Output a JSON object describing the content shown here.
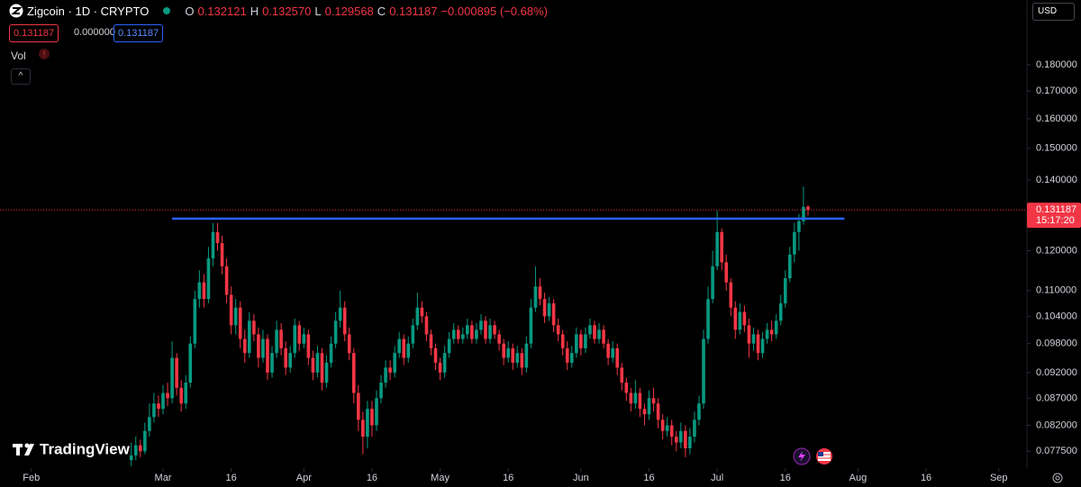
{
  "header": {
    "symbol": "Zigcoin · 1D · CRYPTO",
    "o_label": "O",
    "o_value": "0.132121",
    "h_label": "H",
    "h_value": "0.132570",
    "l_label": "L",
    "l_value": "0.129568",
    "c_label": "C",
    "c_value": "0.131187",
    "change": "−0.000895 (−0.68%)",
    "sell_box": "0.131187",
    "spread_box": "0.000000",
    "buy_box": "0.131187",
    "vol": "Vol",
    "currency": "USD",
    "brand": "TradingView"
  },
  "chart_data": {
    "type": "candlestick",
    "log_scale": true,
    "up_color": "#089981",
    "down_color": "#f23645",
    "xlim": [
      -6.9,
      219.2
    ],
    "xticks": [
      {
        "value": 0,
        "label": "Feb"
      },
      {
        "value": 29,
        "label": "Mar"
      },
      {
        "value": 44,
        "label": "16"
      },
      {
        "value": 60,
        "label": "Apr"
      },
      {
        "value": 75,
        "label": "16"
      },
      {
        "value": 90,
        "label": "May"
      },
      {
        "value": 105,
        "label": "16"
      },
      {
        "value": 121,
        "label": "Jun"
      },
      {
        "value": 136,
        "label": "16"
      },
      {
        "value": 151,
        "label": "Jul"
      },
      {
        "value": 166,
        "label": "16"
      },
      {
        "value": 182,
        "label": "Aug"
      },
      {
        "value": 197,
        "label": "16"
      },
      {
        "value": 213,
        "label": "Sep"
      }
    ],
    "ylim": [
      0.0747,
      0.2073
    ],
    "yticks": [
      {
        "value": 0.18,
        "label": "0.180000"
      },
      {
        "value": 0.17,
        "label": "0.170000"
      },
      {
        "value": 0.16,
        "label": "0.160000"
      },
      {
        "value": 0.15,
        "label": "0.150000"
      },
      {
        "value": 0.14,
        "label": "0.140000"
      },
      {
        "value": 0.12,
        "label": "0.120000"
      },
      {
        "value": 0.11,
        "label": "0.110000"
      },
      {
        "value": 0.104,
        "label": "0.104000"
      },
      {
        "value": 0.098,
        "label": "0.098000"
      },
      {
        "value": 0.092,
        "label": "0.092000"
      },
      {
        "value": 0.087,
        "label": "0.087000"
      },
      {
        "value": 0.082,
        "label": "0.082000"
      },
      {
        "value": 0.0775,
        "label": "0.077500"
      }
    ],
    "last_price": 0.131187,
    "countdown": "15:17:20",
    "level_line": {
      "value": 0.1287,
      "x": [
        31,
        179
      ],
      "color": "#2962ff"
    },
    "x": [
      22,
      23,
      24,
      25,
      26,
      27,
      28,
      29,
      30,
      31,
      32,
      33,
      34,
      35,
      36,
      37,
      38,
      39,
      40,
      41,
      42,
      43,
      44,
      45,
      46,
      47,
      48,
      49,
      50,
      51,
      52,
      53,
      54,
      55,
      56,
      57,
      58,
      59,
      60,
      61,
      62,
      63,
      64,
      65,
      66,
      67,
      68,
      69,
      70,
      71,
      72,
      73,
      74,
      75,
      76,
      77,
      78,
      79,
      80,
      81,
      82,
      83,
      84,
      85,
      86,
      87,
      88,
      89,
      90,
      91,
      92,
      93,
      94,
      95,
      96,
      97,
      98,
      99,
      100,
      101,
      102,
      103,
      104,
      105,
      106,
      107,
      108,
      109,
      110,
      111,
      112,
      113,
      114,
      115,
      116,
      117,
      118,
      119,
      120,
      121,
      122,
      123,
      124,
      125,
      126,
      127,
      128,
      129,
      130,
      131,
      132,
      133,
      134,
      135,
      136,
      137,
      138,
      139,
      140,
      141,
      142,
      143,
      144,
      145,
      146,
      147,
      148,
      149,
      150,
      151,
      152,
      153,
      154,
      155,
      156,
      157,
      158,
      159,
      160,
      161,
      162,
      163,
      164,
      165,
      166,
      167,
      168,
      169,
      170,
      171
    ],
    "open": [
      0.076,
      0.0768,
      0.0785,
      0.0775,
      0.081,
      0.0835,
      0.086,
      0.085,
      0.088,
      0.087,
      0.095,
      0.089,
      0.086,
      0.09,
      0.098,
      0.108,
      0.112,
      0.108,
      0.118,
      0.125,
      0.122,
      0.116,
      0.109,
      0.102,
      0.106,
      0.099,
      0.096,
      0.103,
      0.1,
      0.095,
      0.099,
      0.092,
      0.096,
      0.101,
      0.097,
      0.093,
      0.096,
      0.102,
      0.098,
      0.1,
      0.095,
      0.092,
      0.096,
      0.09,
      0.094,
      0.098,
      0.103,
      0.106,
      0.1,
      0.096,
      0.088,
      0.083,
      0.08,
      0.085,
      0.082,
      0.087,
      0.09,
      0.093,
      0.092,
      0.096,
      0.099,
      0.095,
      0.098,
      0.102,
      0.106,
      0.104,
      0.1,
      0.097,
      0.094,
      0.092,
      0.096,
      0.099,
      0.101,
      0.099,
      0.1,
      0.102,
      0.099,
      0.101,
      0.103,
      0.099,
      0.102,
      0.1,
      0.098,
      0.095,
      0.097,
      0.094,
      0.096,
      0.093,
      0.098,
      0.106,
      0.111,
      0.108,
      0.104,
      0.107,
      0.102,
      0.1,
      0.097,
      0.094,
      0.096,
      0.1,
      0.097,
      0.1,
      0.102,
      0.099,
      0.101,
      0.098,
      0.095,
      0.097,
      0.093,
      0.09,
      0.088,
      0.086,
      0.088,
      0.085,
      0.084,
      0.087,
      0.086,
      0.083,
      0.081,
      0.082,
      0.08,
      0.079,
      0.081,
      0.078,
      0.08,
      0.083,
      0.086,
      0.099,
      0.108,
      0.116,
      0.125,
      0.117,
      0.112,
      0.106,
      0.101,
      0.105,
      0.102,
      0.098,
      0.1,
      0.096,
      0.099,
      0.101,
      0.1,
      0.103,
      0.107,
      0.113,
      0.119,
      0.125,
      0.128,
      0.132121
    ],
    "high": [
      0.079,
      0.08,
      0.0795,
      0.0825,
      0.086,
      0.088,
      0.0875,
      0.0895,
      0.09,
      0.0985,
      0.096,
      0.0905,
      0.0915,
      0.0995,
      0.11,
      0.115,
      0.114,
      0.121,
      0.1275,
      0.1275,
      0.124,
      0.118,
      0.111,
      0.108,
      0.1075,
      0.101,
      0.105,
      0.1045,
      0.1015,
      0.101,
      0.1,
      0.0975,
      0.103,
      0.1025,
      0.0985,
      0.0975,
      0.1035,
      0.103,
      0.1015,
      0.101,
      0.0965,
      0.0975,
      0.097,
      0.0955,
      0.0995,
      0.105,
      0.11,
      0.1075,
      0.1015,
      0.097,
      0.0895,
      0.0845,
      0.0865,
      0.0865,
      0.0885,
      0.0915,
      0.0945,
      0.0945,
      0.0975,
      0.1005,
      0.1,
      0.0995,
      0.1035,
      0.1095,
      0.1075,
      0.105,
      0.101,
      0.098,
      0.095,
      0.0975,
      0.1005,
      0.1025,
      0.102,
      0.1015,
      0.1035,
      0.103,
      0.1025,
      0.1045,
      0.104,
      0.1035,
      0.103,
      0.101,
      0.099,
      0.0985,
      0.098,
      0.0975,
      0.097,
      0.0995,
      0.108,
      0.116,
      0.113,
      0.1095,
      0.1085,
      0.108,
      0.1035,
      0.101,
      0.0985,
      0.0975,
      0.1015,
      0.101,
      0.1015,
      0.1035,
      0.103,
      0.1025,
      0.102,
      0.099,
      0.0985,
      0.098,
      0.094,
      0.091,
      0.089,
      0.0905,
      0.089,
      0.086,
      0.0885,
      0.089,
      0.087,
      0.084,
      0.0835,
      0.083,
      0.081,
      0.0825,
      0.082,
      0.0815,
      0.0845,
      0.0875,
      0.101,
      0.111,
      0.12,
      0.131,
      0.126,
      0.119,
      0.113,
      0.1075,
      0.107,
      0.1065,
      0.1035,
      0.1015,
      0.101,
      0.1005,
      0.1025,
      0.103,
      0.1045,
      0.109,
      0.115,
      0.121,
      0.1275,
      0.13,
      0.138,
      0.13257
    ],
    "low": [
      0.075,
      0.076,
      0.0765,
      0.077,
      0.08,
      0.0825,
      0.0835,
      0.084,
      0.0855,
      0.086,
      0.0875,
      0.0845,
      0.085,
      0.089,
      0.097,
      0.106,
      0.106,
      0.107,
      0.116,
      0.12,
      0.114,
      0.107,
      0.1,
      0.1,
      0.097,
      0.094,
      0.095,
      0.0985,
      0.093,
      0.094,
      0.0905,
      0.091,
      0.095,
      0.0955,
      0.0915,
      0.092,
      0.095,
      0.0965,
      0.097,
      0.0935,
      0.0905,
      0.091,
      0.0885,
      0.089,
      0.093,
      0.097,
      0.1015,
      0.0985,
      0.0945,
      0.086,
      0.081,
      0.077,
      0.078,
      0.08,
      0.081,
      0.086,
      0.089,
      0.0905,
      0.091,
      0.095,
      0.0935,
      0.094,
      0.097,
      0.101,
      0.1025,
      0.0985,
      0.0955,
      0.0925,
      0.0905,
      0.091,
      0.095,
      0.098,
      0.098,
      0.098,
      0.099,
      0.098,
      0.098,
      0.1,
      0.098,
      0.098,
      0.099,
      0.0965,
      0.0935,
      0.094,
      0.0925,
      0.093,
      0.0915,
      0.092,
      0.097,
      0.105,
      0.1065,
      0.1025,
      0.103,
      0.1005,
      0.0985,
      0.0955,
      0.0925,
      0.093,
      0.095,
      0.0955,
      0.096,
      0.099,
      0.098,
      0.098,
      0.097,
      0.0935,
      0.094,
      0.0915,
      0.0885,
      0.0865,
      0.0845,
      0.085,
      0.0835,
      0.082,
      0.083,
      0.0845,
      0.0815,
      0.0795,
      0.08,
      0.0785,
      0.0775,
      0.078,
      0.0765,
      0.077,
      0.079,
      0.082,
      0.085,
      0.098,
      0.107,
      0.115,
      0.115,
      0.11,
      0.104,
      0.099,
      0.1,
      0.1005,
      0.095,
      0.0965,
      0.0945,
      0.095,
      0.098,
      0.0985,
      0.099,
      0.102,
      0.106,
      0.112,
      0.117,
      0.12,
      0.127,
      0.129568
    ],
    "close": [
      0.0768,
      0.0785,
      0.0775,
      0.081,
      0.0835,
      0.086,
      0.085,
      0.088,
      0.087,
      0.095,
      0.089,
      0.086,
      0.09,
      0.098,
      0.108,
      0.112,
      0.108,
      0.118,
      0.125,
      0.122,
      0.116,
      0.109,
      0.102,
      0.106,
      0.099,
      0.096,
      0.103,
      0.1,
      0.095,
      0.099,
      0.092,
      0.096,
      0.101,
      0.097,
      0.093,
      0.096,
      0.102,
      0.098,
      0.1,
      0.095,
      0.092,
      0.096,
      0.09,
      0.094,
      0.098,
      0.103,
      0.106,
      0.1,
      0.096,
      0.088,
      0.083,
      0.08,
      0.085,
      0.082,
      0.087,
      0.09,
      0.093,
      0.092,
      0.096,
      0.099,
      0.095,
      0.098,
      0.102,
      0.106,
      0.104,
      0.1,
      0.097,
      0.094,
      0.092,
      0.096,
      0.099,
      0.101,
      0.099,
      0.1,
      0.102,
      0.099,
      0.101,
      0.103,
      0.099,
      0.102,
      0.1,
      0.098,
      0.095,
      0.097,
      0.094,
      0.096,
      0.093,
      0.098,
      0.106,
      0.111,
      0.108,
      0.104,
      0.107,
      0.102,
      0.1,
      0.097,
      0.094,
      0.096,
      0.1,
      0.097,
      0.1,
      0.102,
      0.099,
      0.101,
      0.098,
      0.095,
      0.097,
      0.093,
      0.09,
      0.088,
      0.086,
      0.088,
      0.085,
      0.084,
      0.087,
      0.086,
      0.083,
      0.081,
      0.082,
      0.08,
      0.079,
      0.081,
      0.078,
      0.08,
      0.083,
      0.086,
      0.099,
      0.108,
      0.116,
      0.125,
      0.117,
      0.112,
      0.106,
      0.101,
      0.105,
      0.102,
      0.098,
      0.1,
      0.096,
      0.099,
      0.101,
      0.1,
      0.103,
      0.107,
      0.113,
      0.119,
      0.125,
      0.128,
      0.132,
      0.131187
    ]
  }
}
